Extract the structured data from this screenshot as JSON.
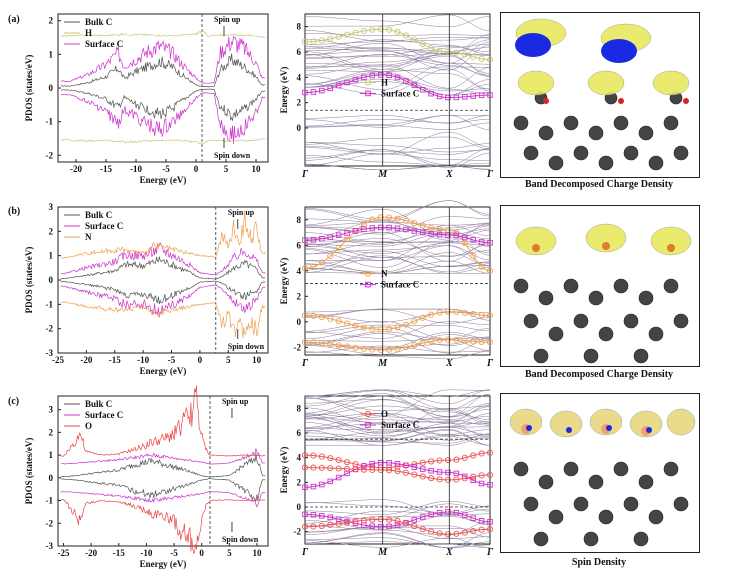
{
  "panels": [
    {
      "label": "(a)",
      "caption": "Band Decomposed Charge Density",
      "pdos": {
        "type": "line",
        "xlabel": "Energy (eV)",
        "ylabel": "PDOS (states/eV)",
        "xlim": [
          -23,
          12
        ],
        "ylim": [
          -2.2,
          2.2
        ],
        "xticks": [
          -20,
          -15,
          -10,
          -5,
          0,
          5,
          10
        ],
        "yticks": [
          -2,
          -1,
          0,
          1,
          2
        ],
        "fermi": 1.0,
        "spin_up": "Spin up",
        "spin_down": "Spin down",
        "legend": [
          "Bulk C",
          "H",
          "Surface C"
        ],
        "series": [
          {
            "name": "Bulk C",
            "color": "#555555",
            "offset": 0.04,
            "points": [
              [
                -21,
                0.02
              ],
              [
                -18,
                0.12
              ],
              [
                -15,
                0.3
              ],
              [
                -13,
                0.55
              ],
              [
                -12,
                0.25
              ],
              [
                -10,
                0.45
              ],
              [
                -8,
                0.6
              ],
              [
                -6,
                0.75
              ],
              [
                -4,
                0.6
              ],
              [
                -2,
                0.3
              ],
              [
                0,
                0.05
              ],
              [
                1,
                0
              ],
              [
                3,
                0
              ],
              [
                4,
                0.5
              ],
              [
                6,
                0.8
              ],
              [
                8,
                0.6
              ],
              [
                10,
                0.3
              ],
              [
                11,
                0.05
              ]
            ]
          },
          {
            "name": "Surface C",
            "color": "#cc33cc",
            "offset": 0.15,
            "points": [
              [
                -21,
                0.05
              ],
              [
                -18,
                0.25
              ],
              [
                -15,
                0.55
              ],
              [
                -13,
                0.9
              ],
              [
                -12,
                0.5
              ],
              [
                -10,
                0.7
              ],
              [
                -8,
                0.95
              ],
              [
                -6,
                1.1
              ],
              [
                -4,
                0.9
              ],
              [
                -2,
                0.5
              ],
              [
                0,
                0.15
              ],
              [
                1,
                0
              ],
              [
                3,
                0
              ],
              [
                4,
                0.9
              ],
              [
                6,
                1.25
              ],
              [
                8,
                1.05
              ],
              [
                10,
                0.6
              ],
              [
                11,
                0.15
              ]
            ]
          },
          {
            "name": "H",
            "color": "#c8c87a",
            "offset": 1.5,
            "points": [
              [
                -22,
                0.05
              ],
              [
                -18,
                0.07
              ],
              [
                -15,
                0.06
              ],
              [
                -12,
                0.1
              ],
              [
                -8,
                0.08
              ],
              [
                -4,
                0.05
              ],
              [
                0,
                0.1
              ],
              [
                1,
                0.2
              ],
              [
                2,
                0.05
              ],
              [
                6,
                0.08
              ],
              [
                10,
                0.05
              ],
              [
                11,
                0.02
              ]
            ]
          }
        ]
      },
      "bands": {
        "type": "line",
        "ylabel": "Energy (eV)",
        "ylim": [
          -3,
          9
        ],
        "yticks": [
          0,
          2,
          4,
          6,
          8
        ],
        "kpoints": [
          "Γ",
          "M",
          "X",
          "Γ"
        ],
        "fermi": 1.4,
        "gap": [
          1.0,
          2.6
        ],
        "legend": [
          "H",
          "Surface C"
        ],
        "series": [
          {
            "name": "H",
            "color": "#c8c87a",
            "marker": "circle",
            "y": [
              6.8,
              7.8,
              6.0,
              5.4
            ]
          },
          {
            "name": "Surface C",
            "color": "#cc33cc",
            "marker": "square",
            "y": [
              2.8,
              4.2,
              2.4,
              2.6
            ]
          }
        ]
      }
    },
    {
      "label": "(b)",
      "caption": "Band Decomposed Charge Density",
      "pdos": {
        "type": "line",
        "xlabel": "Energy (eV)",
        "ylabel": "PDOS (states/eV)",
        "xlim": [
          -25,
          12
        ],
        "ylim": [
          -3,
          3
        ],
        "xticks": [
          -25,
          -20,
          -15,
          -10,
          -5,
          0,
          5,
          10
        ],
        "yticks": [
          -3,
          -2,
          -1,
          0,
          1,
          2,
          3
        ],
        "fermi": 2.8,
        "spin_up": "Spin up",
        "spin_down": "Spin down",
        "legend": [
          "Bulk C",
          "Surface C",
          "N"
        ],
        "series": [
          {
            "name": "Bulk C",
            "color": "#555555",
            "offset": 0.04,
            "points": [
              [
                -24,
                0.02
              ],
              [
                -20,
                0.15
              ],
              [
                -15,
                0.35
              ],
              [
                -13,
                0.6
              ],
              [
                -10,
                0.55
              ],
              [
                -7,
                0.8
              ],
              [
                -5,
                0.6
              ],
              [
                -2,
                0.3
              ],
              [
                0,
                0.05
              ],
              [
                2.8,
                0
              ],
              [
                4,
                0.1
              ],
              [
                6,
                0.45
              ],
              [
                8,
                0.65
              ],
              [
                10,
                0.4
              ],
              [
                11,
                0.05
              ]
            ]
          },
          {
            "name": "Surface C",
            "color": "#cc33cc",
            "offset": 0.2,
            "points": [
              [
                -24,
                0.05
              ],
              [
                -20,
                0.3
              ],
              [
                -15,
                0.55
              ],
              [
                -13,
                0.85
              ],
              [
                -10,
                0.8
              ],
              [
                -7,
                1.1
              ],
              [
                -5,
                0.85
              ],
              [
                -2,
                0.45
              ],
              [
                0,
                0.1
              ],
              [
                2.8,
                0
              ],
              [
                4,
                0.2
              ],
              [
                6,
                0.7
              ],
              [
                8,
                1.0
              ],
              [
                10,
                0.6
              ],
              [
                11,
                0.1
              ]
            ]
          },
          {
            "name": "N",
            "color": "#f0a050",
            "offset": 0.9,
            "points": [
              [
                -24,
                0.0
              ],
              [
                -20,
                0.2
              ],
              [
                -14,
                0.35
              ],
              [
                -10,
                0.2
              ],
              [
                -8,
                0.5
              ],
              [
                -4,
                0.3
              ],
              [
                0,
                0.1
              ],
              [
                2.8,
                0.05
              ],
              [
                4,
                1.0
              ],
              [
                5,
                0.4
              ],
              [
                6,
                1.3
              ],
              [
                7,
                0.6
              ],
              [
                8,
                1.7
              ],
              [
                9,
                0.8
              ],
              [
                10,
                1.2
              ],
              [
                11,
                0.2
              ]
            ]
          }
        ]
      },
      "bands": {
        "type": "line",
        "ylabel": "Energy (eV)",
        "ylim": [
          -2.6,
          9
        ],
        "yticks": [
          -2,
          0,
          2,
          4,
          6,
          8
        ],
        "kpoints": [
          "Γ",
          "M",
          "X",
          "Γ"
        ],
        "fermi": 3.0,
        "gap": [
          1.0,
          3.8
        ],
        "legend": [
          "N",
          "Surface C"
        ],
        "series": [
          {
            "name": "N",
            "color": "#f0a050",
            "marker": "circle",
            "y": [
              4.2,
              8.2,
              7.2,
              4.0
            ]
          },
          {
            "name": "Surface C",
            "color": "#cc33cc",
            "marker": "square",
            "y": [
              6.4,
              7.4,
              6.8,
              6.2
            ]
          },
          {
            "name": "N",
            "color": "#f0a050",
            "marker": "circle",
            "y": [
              0.5,
              -0.6,
              0.8,
              0.5
            ]
          },
          {
            "name": "N",
            "color": "#f0a050",
            "marker": "circle",
            "y": [
              -1.6,
              -2.2,
              -1.4,
              -1.6
            ]
          }
        ]
      }
    },
    {
      "label": "(c)",
      "caption": "Spin Density",
      "pdos": {
        "type": "line",
        "xlabel": "Energy (eV)",
        "ylabel": "PDOS (states/eV)",
        "xlim": [
          -26,
          12
        ],
        "ylim": [
          -3,
          3.6
        ],
        "xticks": [
          -25,
          -20,
          -15,
          -10,
          -5,
          0,
          5,
          10
        ],
        "yticks": [
          -3,
          -2,
          -1,
          0,
          1,
          2,
          3
        ],
        "fermi": 1.5,
        "spin_up": "Spin up",
        "spin_down": "Spin down",
        "legend": [
          "Bulk C",
          "Surface C",
          "O"
        ],
        "series": [
          {
            "name": "Bulk C",
            "color": "#555555",
            "offset": 0.04,
            "points": [
              [
                -24,
                0.02
              ],
              [
                -20,
                0.15
              ],
              [
                -15,
                0.3
              ],
              [
                -12,
                0.55
              ],
              [
                -9,
                0.7
              ],
              [
                -6,
                0.5
              ],
              [
                -3,
                0.3
              ],
              [
                0,
                0.05
              ],
              [
                1.5,
                0
              ],
              [
                5,
                0.05
              ],
              [
                7,
                0.4
              ],
              [
                9,
                0.7
              ],
              [
                10,
                0.9
              ],
              [
                11,
                0.05
              ]
            ]
          },
          {
            "name": "Surface C",
            "color": "#cc33cc",
            "offset": 0.6,
            "points": [
              [
                -24,
                0.02
              ],
              [
                -20,
                0.1
              ],
              [
                -15,
                0.2
              ],
              [
                -12,
                0.3
              ],
              [
                -9,
                0.4
              ],
              [
                -6,
                0.3
              ],
              [
                -3,
                0.2
              ],
              [
                0,
                0.1
              ],
              [
                1.5,
                0
              ],
              [
                5,
                0.05
              ],
              [
                8,
                0.3
              ],
              [
                10,
                0.6
              ],
              [
                11,
                0.05
              ]
            ]
          },
          {
            "name": "O",
            "color": "#ee4444",
            "offset": 0.95,
            "points": [
              [
                -25,
                0.0
              ],
              [
                -23,
                0.6
              ],
              [
                -22,
                1.0
              ],
              [
                -21,
                0.2
              ],
              [
                -18,
                0.05
              ],
              [
                -15,
                0.1
              ],
              [
                -12,
                0.3
              ],
              [
                -9,
                0.6
              ],
              [
                -6,
                0.8
              ],
              [
                -4,
                1.3
              ],
              [
                -2,
                1.8
              ],
              [
                -1,
                2.6
              ],
              [
                0,
                0.8
              ],
              [
                1,
                0.2
              ],
              [
                1.5,
                0.05
              ],
              [
                5,
                0.02
              ],
              [
                8,
                0.05
              ],
              [
                11,
                0.02
              ]
            ]
          }
        ]
      },
      "bands": {
        "type": "line",
        "ylabel": "Energy (eV)",
        "ylim": [
          -3,
          9
        ],
        "yticks": [
          -2,
          0,
          2,
          4,
          6,
          8
        ],
        "kpoints": [
          "Γ",
          "M",
          "X",
          "Γ"
        ],
        "fermi": 0.0,
        "fermi2": 5.5,
        "gap": [
          0.6,
          5.0
        ],
        "legend": [
          "O",
          "Surface C"
        ],
        "series": [
          {
            "name": "O",
            "color": "#ee5555",
            "marker": "circle",
            "y": [
              4.2,
              3.2,
              3.8,
              4.4
            ]
          },
          {
            "name": "Surface C",
            "color": "#cc33cc",
            "marker": "square",
            "y": [
              1.6,
              3.6,
              2.8,
              1.8
            ]
          },
          {
            "name": "O",
            "color": "#ee5555",
            "marker": "circle",
            "y": [
              3.2,
              3.0,
              2.2,
              2.6
            ]
          },
          {
            "name": "Surface C",
            "color": "#cc33cc",
            "marker": "square",
            "y": [
              -0.6,
              -1.6,
              -0.4,
              -1.2
            ]
          },
          {
            "name": "O",
            "color": "#ee5555",
            "marker": "circle",
            "y": [
              -1.6,
              -1.0,
              -2.2,
              -1.8
            ]
          }
        ]
      }
    }
  ]
}
